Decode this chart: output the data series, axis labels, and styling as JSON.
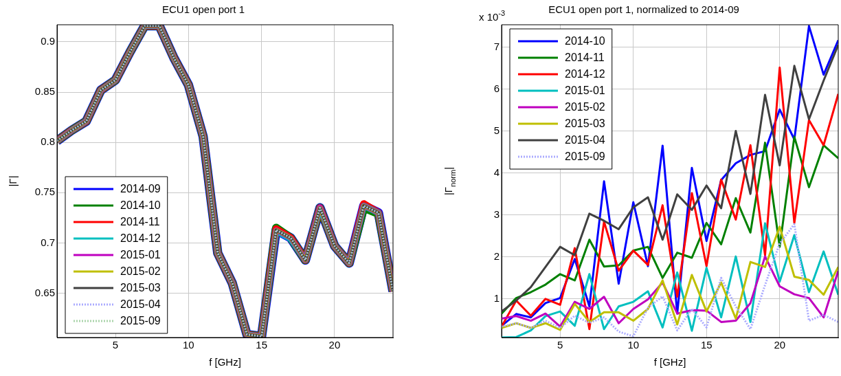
{
  "chart_data": [
    {
      "type": "line",
      "title": "ECU1 open port 1",
      "xlabel": "f [GHz]",
      "ylabel": "|Γ|",
      "x": [
        1,
        2,
        3,
        4,
        5,
        6,
        7,
        8,
        9,
        10,
        11,
        12,
        13,
        14,
        15,
        16,
        17,
        18,
        19,
        20,
        21,
        22,
        23,
        24
      ],
      "xlim": [
        1,
        24
      ],
      "xticks": [
        5,
        10,
        15,
        20
      ],
      "ylim": [
        0.606,
        0.917
      ],
      "yticks": [
        0.65,
        0.7,
        0.75,
        0.8,
        0.85,
        0.9
      ],
      "grid": true,
      "legend": "bottom left",
      "series": [
        {
          "name": "2014-09",
          "color": "#0000ff",
          "values": [
            0.8015,
            0.812,
            0.821,
            0.852,
            0.862,
            0.89,
            0.916,
            0.916,
            0.884,
            0.857,
            0.806,
            0.69,
            0.66,
            0.609,
            0.607,
            0.713,
            0.705,
            0.683,
            0.735,
            0.697,
            0.68,
            0.737,
            0.73,
            0.652
          ]
        },
        {
          "name": "2014-10",
          "color": "#008000",
          "values": [
            0.8015,
            0.812,
            0.821,
            0.852,
            0.862,
            0.89,
            0.916,
            0.916,
            0.884,
            0.857,
            0.806,
            0.69,
            0.66,
            0.609,
            0.607,
            0.715,
            0.705,
            0.683,
            0.735,
            0.697,
            0.68,
            0.735,
            0.729,
            0.652
          ]
        },
        {
          "name": "2014-11",
          "color": "#ff0000",
          "values": [
            0.8015,
            0.812,
            0.821,
            0.852,
            0.862,
            0.89,
            0.916,
            0.916,
            0.884,
            0.857,
            0.806,
            0.69,
            0.66,
            0.609,
            0.607,
            0.714,
            0.705,
            0.683,
            0.735,
            0.697,
            0.68,
            0.739,
            0.73,
            0.652
          ]
        },
        {
          "name": "2014-12",
          "color": "#00bfbf",
          "values": [
            0.8015,
            0.812,
            0.821,
            0.852,
            0.862,
            0.89,
            0.916,
            0.916,
            0.884,
            0.857,
            0.806,
            0.69,
            0.66,
            0.609,
            0.607,
            0.712,
            0.704,
            0.683,
            0.735,
            0.697,
            0.68,
            0.737,
            0.73,
            0.652
          ]
        },
        {
          "name": "2015-01",
          "color": "#bf00bf",
          "values": [
            0.8015,
            0.812,
            0.821,
            0.852,
            0.862,
            0.89,
            0.916,
            0.916,
            0.884,
            0.857,
            0.806,
            0.69,
            0.66,
            0.609,
            0.607,
            0.713,
            0.705,
            0.683,
            0.736,
            0.697,
            0.68,
            0.737,
            0.73,
            0.652
          ]
        },
        {
          "name": "2015-02",
          "color": "#bfbf00",
          "values": [
            0.8015,
            0.812,
            0.821,
            0.852,
            0.862,
            0.89,
            0.916,
            0.916,
            0.884,
            0.857,
            0.806,
            0.69,
            0.66,
            0.609,
            0.607,
            0.713,
            0.705,
            0.683,
            0.735,
            0.697,
            0.68,
            0.737,
            0.73,
            0.652
          ]
        },
        {
          "name": "2015-03",
          "color": "#404040",
          "values": [
            0.8015,
            0.812,
            0.821,
            0.852,
            0.862,
            0.89,
            0.916,
            0.916,
            0.884,
            0.857,
            0.806,
            0.69,
            0.66,
            0.609,
            0.607,
            0.713,
            0.705,
            0.683,
            0.735,
            0.697,
            0.68,
            0.737,
            0.73,
            0.652
          ]
        },
        {
          "name": "2015-04",
          "color": "#aaaaff",
          "line_style": "dotted",
          "values": [
            0.8015,
            0.812,
            0.821,
            0.852,
            0.862,
            0.89,
            0.916,
            0.916,
            0.884,
            0.857,
            0.806,
            0.69,
            0.66,
            0.609,
            0.607,
            0.713,
            0.705,
            0.683,
            0.735,
            0.697,
            0.68,
            0.737,
            0.73,
            0.652
          ]
        },
        {
          "name": "2015-09",
          "color": "#aad4aa",
          "line_style": "dotted",
          "values": [
            0.8015,
            0.812,
            0.821,
            0.852,
            0.862,
            0.89,
            0.916,
            0.916,
            0.884,
            0.857,
            0.806,
            0.69,
            0.66,
            0.609,
            0.607,
            0.713,
            0.705,
            0.683,
            0.735,
            0.697,
            0.68,
            0.737,
            0.73,
            0.652
          ]
        }
      ]
    },
    {
      "type": "line",
      "title": "ECU1 open port 1, normalized to 2014-09",
      "xlabel": "f [GHz]",
      "ylabel": "|Γ$_{norm}$|",
      "annotations": [
        "x 10$^{-3}$"
      ],
      "x": [
        1,
        2,
        3,
        4,
        5,
        6,
        7,
        8,
        9,
        10,
        11,
        12,
        13,
        14,
        15,
        16,
        17,
        18,
        19,
        20,
        21,
        22,
        23,
        24
      ],
      "xlim": [
        1,
        24
      ],
      "xticks": [
        5,
        10,
        15,
        20
      ],
      "ylim": [
        0.08,
        7.53
      ],
      "yticks": [
        1,
        2,
        3,
        4,
        5,
        6,
        7
      ],
      "grid": true,
      "legend": "top left",
      "series": [
        {
          "name": "2014-10",
          "color": "#0000ff",
          "values": [
            0.36,
            0.64,
            0.56,
            0.9,
            1.02,
            1.95,
            0.82,
            3.8,
            1.36,
            3.3,
            1.78,
            4.65,
            0.65,
            4.12,
            2.38,
            3.83,
            4.23,
            4.43,
            4.52,
            5.51,
            4.8,
            7.5,
            6.34,
            7.16
          ]
        },
        {
          "name": "2014-11",
          "color": "#008000",
          "values": [
            0.65,
            1.02,
            1.16,
            1.34,
            1.59,
            1.44,
            2.41,
            1.77,
            1.8,
            2.15,
            2.24,
            1.5,
            2.1,
            1.98,
            2.81,
            2.3,
            3.4,
            2.58,
            4.72,
            2.24,
            4.86,
            3.66,
            4.66,
            4.35
          ]
        },
        {
          "name": "2014-12",
          "color": "#ff0000",
          "values": [
            0.34,
            0.96,
            0.6,
            1.0,
            0.86,
            2.21,
            0.28,
            2.84,
            1.67,
            2.15,
            1.81,
            3.23,
            1.05,
            3.52,
            1.78,
            3.84,
            2.89,
            4.66,
            2.04,
            6.51,
            2.81,
            5.26,
            4.66,
            5.88
          ]
        },
        {
          "name": "2015-01",
          "color": "#00bfbf",
          "values": [
            0.08,
            0.09,
            0.25,
            0.59,
            0.7,
            0.36,
            1.59,
            0.28,
            0.82,
            0.93,
            1.18,
            0.32,
            1.63,
            0.24,
            1.74,
            0.56,
            2.01,
            0.45,
            2.8,
            1.41,
            2.52,
            1.16,
            2.13,
            1.1
          ]
        },
        {
          "name": "2015-02",
          "color": "#bf00bf",
          "values": [
            0.53,
            0.59,
            0.48,
            0.65,
            0.34,
            0.93,
            0.76,
            1.05,
            0.42,
            0.76,
            0.99,
            1.39,
            0.65,
            0.73,
            0.72,
            0.45,
            0.48,
            0.9,
            2.01,
            1.3,
            1.11,
            1.02,
            0.56,
            1.67
          ]
        },
        {
          "name": "2015-03",
          "color": "#bfbf00",
          "values": [
            0.31,
            0.42,
            0.31,
            0.42,
            0.26,
            0.88,
            0.45,
            0.68,
            0.68,
            0.48,
            0.76,
            1.44,
            0.39,
            1.57,
            0.7,
            1.39,
            0.53,
            1.88,
            1.76,
            2.72,
            1.53,
            1.45,
            1.1,
            1.76
          ]
        },
        {
          "name": "2015-04",
          "color": "#404040",
          "values": [
            0.7,
            0.96,
            1.28,
            1.76,
            2.24,
            2.04,
            3.03,
            2.86,
            2.66,
            3.18,
            3.42,
            2.41,
            3.49,
            3.12,
            3.7,
            3.16,
            5.0,
            3.5,
            5.86,
            4.18,
            6.55,
            5.28,
            6.2,
            7.05
          ]
        },
        {
          "name": "2015-09",
          "color": "#aaaaff",
          "line_style": "dotted",
          "values": [
            0.34,
            0.42,
            0.31,
            0.48,
            0.31,
            0.6,
            0.43,
            0.56,
            0.22,
            0.11,
            0.79,
            1.06,
            0.25,
            0.76,
            0.32,
            1.5,
            0.82,
            0.28,
            1.33,
            2.32,
            2.78,
            0.48,
            0.62,
            0.45
          ]
        }
      ]
    }
  ]
}
